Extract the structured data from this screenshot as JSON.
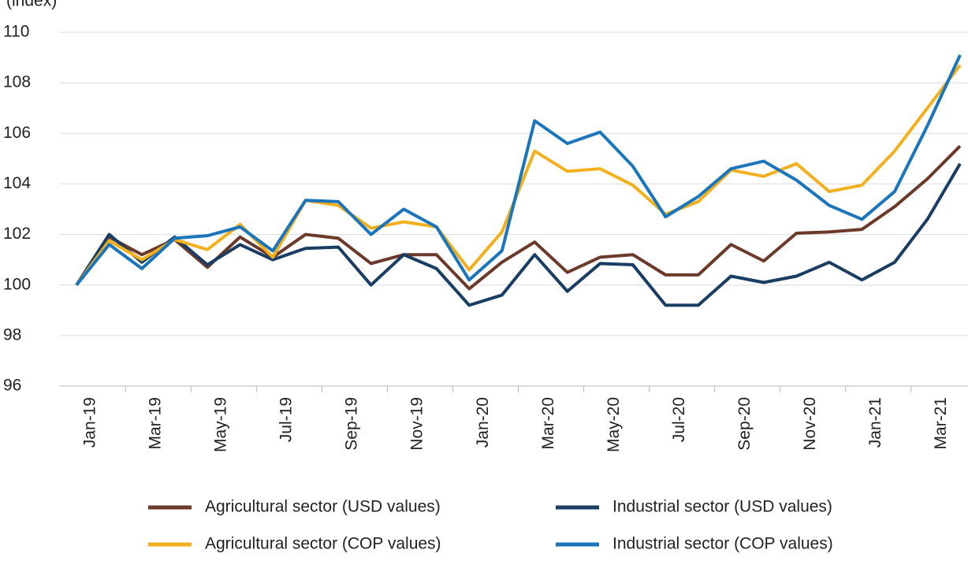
{
  "chart_data": {
    "type": "line",
    "ylabel": "(index)",
    "categories": [
      "Jan-19",
      null,
      "Mar-19",
      null,
      "May-19",
      null,
      "Jul-19",
      null,
      "Sep-19",
      null,
      "Nov-19",
      null,
      "Jan-20",
      null,
      "Mar-20",
      null,
      "May-20",
      null,
      "Jul-20",
      null,
      "Sep-20",
      null,
      "Nov-20",
      null,
      "Jan-21",
      null,
      "Mar-21",
      null
    ],
    "series": [
      {
        "name": "Agricultural sector (USD values)",
        "color": "#6b3a2a",
        "values": [
          100,
          101.9,
          101.2,
          101.8,
          100.7,
          101.9,
          101.1,
          102.0,
          101.85,
          100.85,
          101.2,
          101.2,
          99.85,
          100.9,
          101.7,
          100.5,
          101.1,
          101.2,
          100.4,
          100.4,
          101.6,
          100.95,
          102.05,
          102.1,
          102.2,
          103.1,
          104.2,
          105.5
        ]
      },
      {
        "name": "Industrial sector (USD values)",
        "color": "#1a3d63",
        "values": [
          100,
          102.0,
          100.9,
          101.9,
          100.8,
          101.6,
          101.0,
          101.45,
          101.5,
          100.0,
          101.2,
          100.65,
          99.2,
          99.6,
          101.2,
          99.75,
          100.85,
          100.8,
          99.2,
          99.2,
          100.35,
          100.1,
          100.35,
          100.9,
          100.2,
          100.9,
          102.6,
          104.8
        ]
      },
      {
        "name": "Agricultural sector (COP values)",
        "color": "#f2b01e",
        "values": [
          100,
          101.75,
          101.0,
          101.8,
          101.4,
          102.4,
          101.1,
          103.35,
          103.15,
          102.25,
          102.5,
          102.3,
          100.6,
          102.1,
          105.3,
          104.5,
          104.6,
          103.95,
          102.8,
          103.3,
          104.55,
          104.3,
          104.8,
          103.7,
          103.95,
          105.3,
          107.0,
          108.7
        ]
      },
      {
        "name": "Industrial sector (COP values)",
        "color": "#1a75bb",
        "values": [
          100,
          101.6,
          100.65,
          101.85,
          101.95,
          102.3,
          101.35,
          103.35,
          103.3,
          102.0,
          103.0,
          102.3,
          100.2,
          101.35,
          106.5,
          105.6,
          106.05,
          104.7,
          102.7,
          103.5,
          104.6,
          104.9,
          104.15,
          103.15,
          102.6,
          103.7,
          106.3,
          109.1
        ]
      }
    ],
    "ylim": [
      96,
      110
    ],
    "yticks": [
      96,
      98,
      100,
      102,
      104,
      106,
      108,
      110
    ],
    "grid": true
  }
}
